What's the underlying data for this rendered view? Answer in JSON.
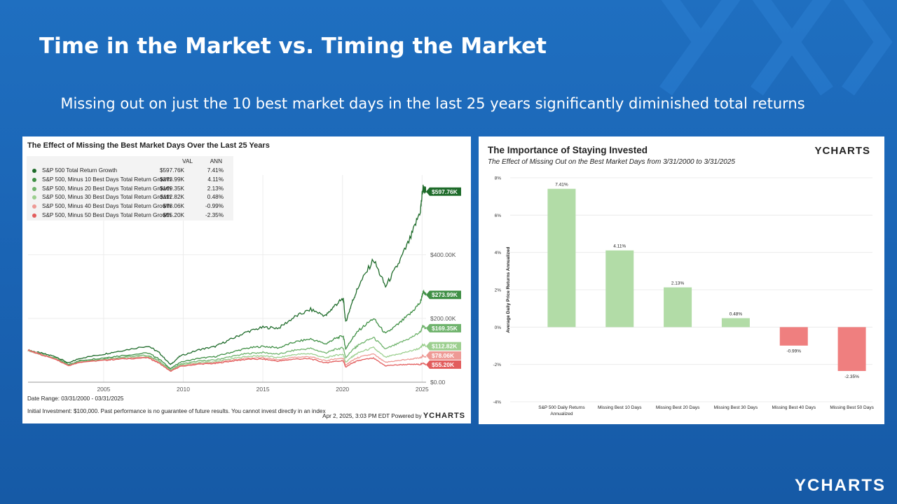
{
  "slide": {
    "title": "Time in the Market vs. Timing the Market",
    "subtitle": "Missing out on just the 10 best market days in the last 25 years significantly diminished total returns",
    "logo": "YCHARTS"
  },
  "chart_data": [
    {
      "type": "line",
      "title": "The Effect of Missing the Best Market Days Over the Last 25 Years",
      "legend_headers": {
        "val": "VAL",
        "ann": "ANN"
      },
      "x": [
        "2005",
        "2010",
        "2015",
        "2020",
        "2025"
      ],
      "xlim": [
        2000.25,
        2025.25
      ],
      "y_ticks": [
        "$0.00",
        "$200.00K",
        "$400.00K"
      ],
      "ylim": [
        0,
        650000
      ],
      "grid": true,
      "legend_position": "top-left",
      "series": [
        {
          "name": "S&P 500 Total Return Growth",
          "val": "$597.76K",
          "ann": "7.41%",
          "end_label": "$597.76K",
          "color": "#1e6b2a",
          "end": 597760,
          "points": [
            [
              2000.25,
              100000
            ],
            [
              2001,
              92000
            ],
            [
              2002,
              80000
            ],
            [
              2002.8,
              60000
            ],
            [
              2003.5,
              75000
            ],
            [
              2005,
              88000
            ],
            [
              2006,
              98000
            ],
            [
              2007.8,
              114000
            ],
            [
              2008.5,
              92000
            ],
            [
              2009.2,
              55000
            ],
            [
              2009.8,
              82000
            ],
            [
              2011,
              102000
            ],
            [
              2012,
              112000
            ],
            [
              2013,
              135000
            ],
            [
              2014,
              158000
            ],
            [
              2015,
              172000
            ],
            [
              2016,
              170000
            ],
            [
              2017,
              205000
            ],
            [
              2018,
              228000
            ],
            [
              2018.95,
              208000
            ],
            [
              2019.5,
              240000
            ],
            [
              2020.05,
              262000
            ],
            [
              2020.2,
              188000
            ],
            [
              2020.6,
              250000
            ],
            [
              2021,
              300000
            ],
            [
              2021.95,
              385000
            ],
            [
              2022.7,
              300000
            ],
            [
              2023.5,
              370000
            ],
            [
              2024.3,
              455000
            ],
            [
              2024.9,
              540000
            ],
            [
              2025.05,
              610000
            ],
            [
              2025.25,
              597760
            ]
          ]
        },
        {
          "name": "S&P 500, Minus 10 Best Days Total Return Growth",
          "val": "$273.99K",
          "ann": "4.11%",
          "end_label": "$273.99K",
          "color": "#3f8f45",
          "end": 273990
        },
        {
          "name": "S&P 500, Minus 20 Best Days Total Return Growth",
          "val": "$169.35K",
          "ann": "2.13%",
          "end_label": "$169.35K",
          "color": "#6fb36c",
          "end": 169350
        },
        {
          "name": "S&P 500, Minus 30 Best Days Total Return Growth",
          "val": "$112.82K",
          "ann": "0.48%",
          "end_label": "$112.82K",
          "color": "#9ccf8f",
          "end": 112820
        },
        {
          "name": "S&P 500, Minus 40 Best Days Total Return Growth",
          "val": "$78.06K",
          "ann": "-0.99%",
          "end_label": "$78.06K",
          "color": "#ee9a95",
          "end": 78060
        },
        {
          "name": "S&P 500, Minus 50 Best Days Total Return Growth",
          "val": "$55.20K",
          "ann": "-2.35%",
          "end_label": "$55.20K",
          "color": "#e25c5c",
          "end": 55200
        }
      ],
      "footer": {
        "date_range": "Date Range: 03/31/2000 - 03/31/2025",
        "disclaimer": "Initial Investment: $100,000. Past performance is no guarantee of future results. You cannot invest directly in an index",
        "stamp": "Apr 2, 2025, 3:03 PM EDT Powered by",
        "brand": "YCHARTS"
      }
    },
    {
      "type": "bar",
      "title": "The Importance of Staying Invested",
      "subtitle": "The Effect of Missing Out on the Best Market Days from 3/31/2000 to 3/31/2025",
      "brand": "YCHARTS",
      "ylabel": "Average Daily Price Returns Annualized",
      "categories": [
        "S&P 500 Daily Returns Annualized",
        "Missing Best 10 Days",
        "Missing Best 20 Days",
        "Missing Best 30 Days",
        "Missing Best 40 Days",
        "Missing Best 50 Days"
      ],
      "values": [
        7.41,
        4.11,
        2.13,
        0.48,
        -0.99,
        -2.35
      ],
      "data_labels": [
        "7.41%",
        "4.11%",
        "2.13%",
        "0.48%",
        "-0.99%",
        "-2.35%"
      ],
      "y_ticks": [
        8,
        6,
        4,
        2,
        0,
        -2,
        -4
      ],
      "y_tick_labels": [
        "8%",
        "6%",
        "4%",
        "2%",
        "0%",
        "-2%",
        "-4%"
      ],
      "ylim": [
        -4,
        8
      ],
      "grid": true,
      "colors": {
        "positive": "#b2dca7",
        "negative": "#ef7f7f"
      }
    }
  ]
}
